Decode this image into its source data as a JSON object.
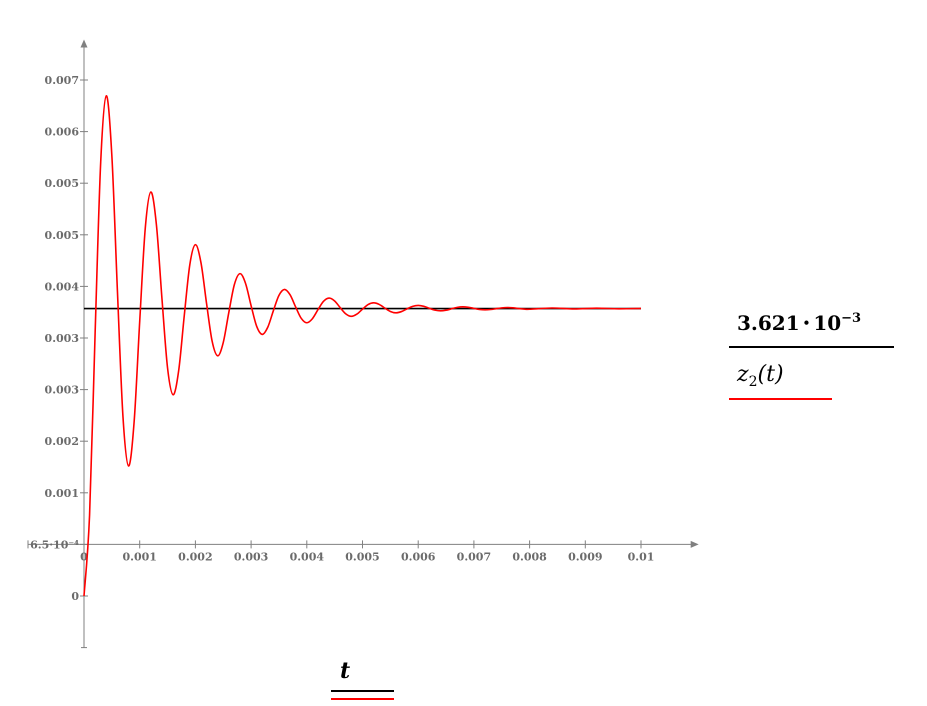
{
  "chart_data": {
    "type": "line",
    "title": "",
    "xlabel": "t",
    "xlim": [
      0,
      0.011
    ],
    "ylim": [
      -0.00065,
      0.00696
    ],
    "grid": false,
    "x_ticks": [
      {
        "value": 0,
        "label": "0"
      },
      {
        "value": 0.001,
        "label": "0.001"
      },
      {
        "value": 0.002,
        "label": "0.002"
      },
      {
        "value": 0.003,
        "label": "0.003"
      },
      {
        "value": 0.004,
        "label": "0.004"
      },
      {
        "value": 0.005,
        "label": "0.005"
      },
      {
        "value": 0.006,
        "label": "0.006"
      },
      {
        "value": 0.007,
        "label": "0.007"
      },
      {
        "value": 0.008,
        "label": "0.008"
      },
      {
        "value": 0.009,
        "label": "0.009"
      },
      {
        "value": 0.01,
        "label": "0.01"
      }
    ],
    "y_ticks": [
      {
        "value": 0,
        "label": "0"
      },
      {
        "value": 0.00065,
        "label": "6.5·10⁻⁴"
      },
      {
        "value": 0.0013,
        "label": "0.001"
      },
      {
        "value": 0.00195,
        "label": "0.002"
      },
      {
        "value": 0.0026,
        "label": "0.003"
      },
      {
        "value": 0.00325,
        "label": "0.003"
      },
      {
        "value": 0.0039,
        "label": "0.004"
      },
      {
        "value": 0.00455,
        "label": "0.005"
      },
      {
        "value": 0.0052,
        "label": "0.005"
      },
      {
        "value": 0.00585,
        "label": "0.006"
      },
      {
        "value": 0.0065,
        "label": "0.007"
      }
    ],
    "x_axis_crosses_y_at": 0.00065,
    "series": [
      {
        "name": "3.621·10^-3",
        "color": "#000000",
        "kind": "constant",
        "x": [
          0,
          0.01
        ],
        "y": [
          0.003621,
          0.003621
        ]
      },
      {
        "name": "z2(t)",
        "color": "#ff0000",
        "x": [
          0,
          0.0001,
          0.0002,
          0.0003,
          0.0004,
          0.0005,
          0.0006,
          0.0007,
          0.0008,
          0.0009,
          0.001,
          0.0011,
          0.0012,
          0.0013,
          0.0014,
          0.0015,
          0.0016,
          0.0017,
          0.0018,
          0.0019,
          0.002,
          0.0021,
          0.0022,
          0.0023,
          0.0024,
          0.0025,
          0.0026,
          0.0027,
          0.0028,
          0.0029,
          0.003,
          0.0031,
          0.0032,
          0.0033,
          0.0034,
          0.0035,
          0.0036,
          0.0037,
          0.0038,
          0.0039,
          0.004,
          0.0041,
          0.0042,
          0.0043,
          0.0044,
          0.0045,
          0.0046,
          0.0047,
          0.0048,
          0.0049,
          0.005,
          0.0051,
          0.0052,
          0.0053,
          0.0054,
          0.0055,
          0.0056,
          0.0057,
          0.0058,
          0.0059,
          0.006,
          0.0061,
          0.0062,
          0.0063,
          0.0064,
          0.0065,
          0.0066,
          0.0067,
          0.0068,
          0.0069,
          0.007,
          0.0071,
          0.0072,
          0.0073,
          0.0074,
          0.0075,
          0.0076,
          0.0077,
          0.0078,
          0.0079,
          0.008,
          0.0084,
          0.0088,
          0.0092,
          0.0096,
          0.01
        ],
        "y": [
          0,
          0.001019,
          0.003322,
          0.005468,
          0.006301,
          0.005547,
          0.003842,
          0.002254,
          0.001638,
          0.002195,
          0.003457,
          0.004633,
          0.005089,
          0.004676,
          0.003742,
          0.002873,
          0.002535,
          0.00284,
          0.003531,
          0.004175,
          0.004425,
          0.004199,
          0.003687,
          0.003211,
          0.003026,
          0.003193,
          0.003572,
          0.003924,
          0.004061,
          0.003938,
          0.003657,
          0.003397,
          0.003295,
          0.003387,
          0.003594,
          0.003787,
          0.003862,
          0.003794,
          0.003641,
          0.003498,
          0.003442,
          0.003493,
          0.003606,
          0.003712,
          0.003753,
          0.003716,
          0.003632,
          0.003554,
          0.003523,
          0.003551,
          0.003613,
          0.003671,
          0.003693,
          0.003673,
          0.003627,
          0.003584,
          0.003567,
          0.003583,
          0.003617,
          0.003648,
          0.00366,
          0.003649,
          0.003624,
          0.003601,
          0.003592,
          0.0036,
          0.003618,
          0.003636,
          0.003643,
          0.003637,
          0.003623,
          0.00361,
          0.003605,
          0.003609,
          0.003619,
          0.003629,
          0.003633,
          0.00363,
          0.003621,
          0.003615,
          0.003612,
          0.003628,
          0.003616,
          0.003625,
          0.003618,
          0.003623
        ]
      }
    ]
  },
  "legend": {
    "constant_mantissa": "3.621",
    "constant_dot": "•",
    "constant_base": "10",
    "constant_exp": "−3",
    "fn_name": "z",
    "fn_sub": "2",
    "fn_arg": "(t)",
    "x_var": "t"
  },
  "colors": {
    "axis": "#808080",
    "tick_text": "#6b6b6b",
    "trace1": "#000000",
    "trace2": "#ff0000"
  }
}
